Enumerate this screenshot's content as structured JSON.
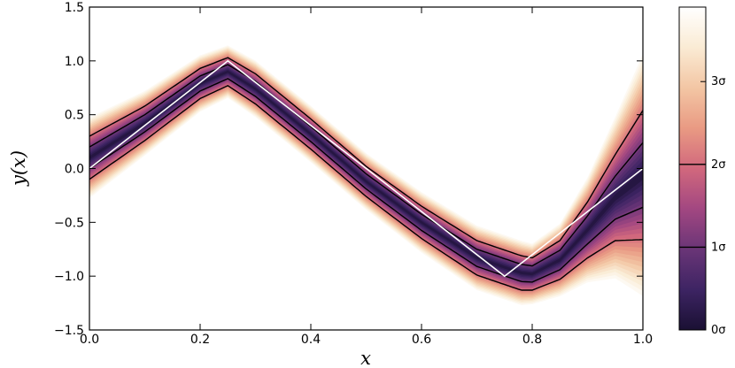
{
  "chart_data": {
    "type": "area",
    "title": "",
    "xlabel": "x",
    "ylabel": "y(x)",
    "xlim": [
      0.0,
      1.0
    ],
    "ylim": [
      -1.5,
      1.5
    ],
    "x_ticks": [
      "0.0",
      "0.2",
      "0.4",
      "0.6",
      "0.8",
      "1.0"
    ],
    "x_tick_values": [
      0.0,
      0.2,
      0.4,
      0.6,
      0.8,
      1.0
    ],
    "y_ticks": [
      "−1.5",
      "−1.0",
      "−0.5",
      "0.0",
      "0.5",
      "1.0",
      "1.5"
    ],
    "y_tick_values": [
      -1.5,
      -1.0,
      -0.5,
      0.0,
      0.5,
      1.0,
      1.5
    ],
    "true_function": {
      "x": [
        0.0,
        0.25,
        0.75,
        1.0
      ],
      "y": [
        0.0,
        1.0,
        -1.0,
        0.0
      ],
      "color": "#ffffff"
    },
    "posterior": {
      "x": [
        0.0,
        0.1,
        0.2,
        0.25,
        0.3,
        0.4,
        0.5,
        0.6,
        0.7,
        0.78,
        0.8,
        0.85,
        0.9,
        0.95,
        1.0
      ],
      "mean": [
        0.1,
        0.42,
        0.79,
        0.9,
        0.74,
        0.32,
        -0.12,
        -0.5,
        -0.83,
        -0.97,
        -0.98,
        -0.85,
        -0.57,
        -0.27,
        -0.06
      ],
      "sigma": [
        0.1,
        0.08,
        0.07,
        0.065,
        0.07,
        0.07,
        0.07,
        0.075,
        0.08,
        0.08,
        0.075,
        0.09,
        0.13,
        0.2,
        0.3
      ]
    },
    "contours": [
      "1σ",
      "2σ"
    ],
    "colorbar": {
      "range": [
        0,
        3.9
      ],
      "ticks": [
        "0σ",
        "1σ",
        "2σ",
        "3σ"
      ],
      "tick_values": [
        0,
        1,
        2,
        3
      ],
      "colormap": [
        "#1a1033",
        "#3d2463",
        "#6a3577",
        "#a24781",
        "#d1687d",
        "#e99a83",
        "#f3c6a4",
        "#faebd4",
        "#ffffff"
      ]
    },
    "grid": false,
    "legend": "none"
  }
}
